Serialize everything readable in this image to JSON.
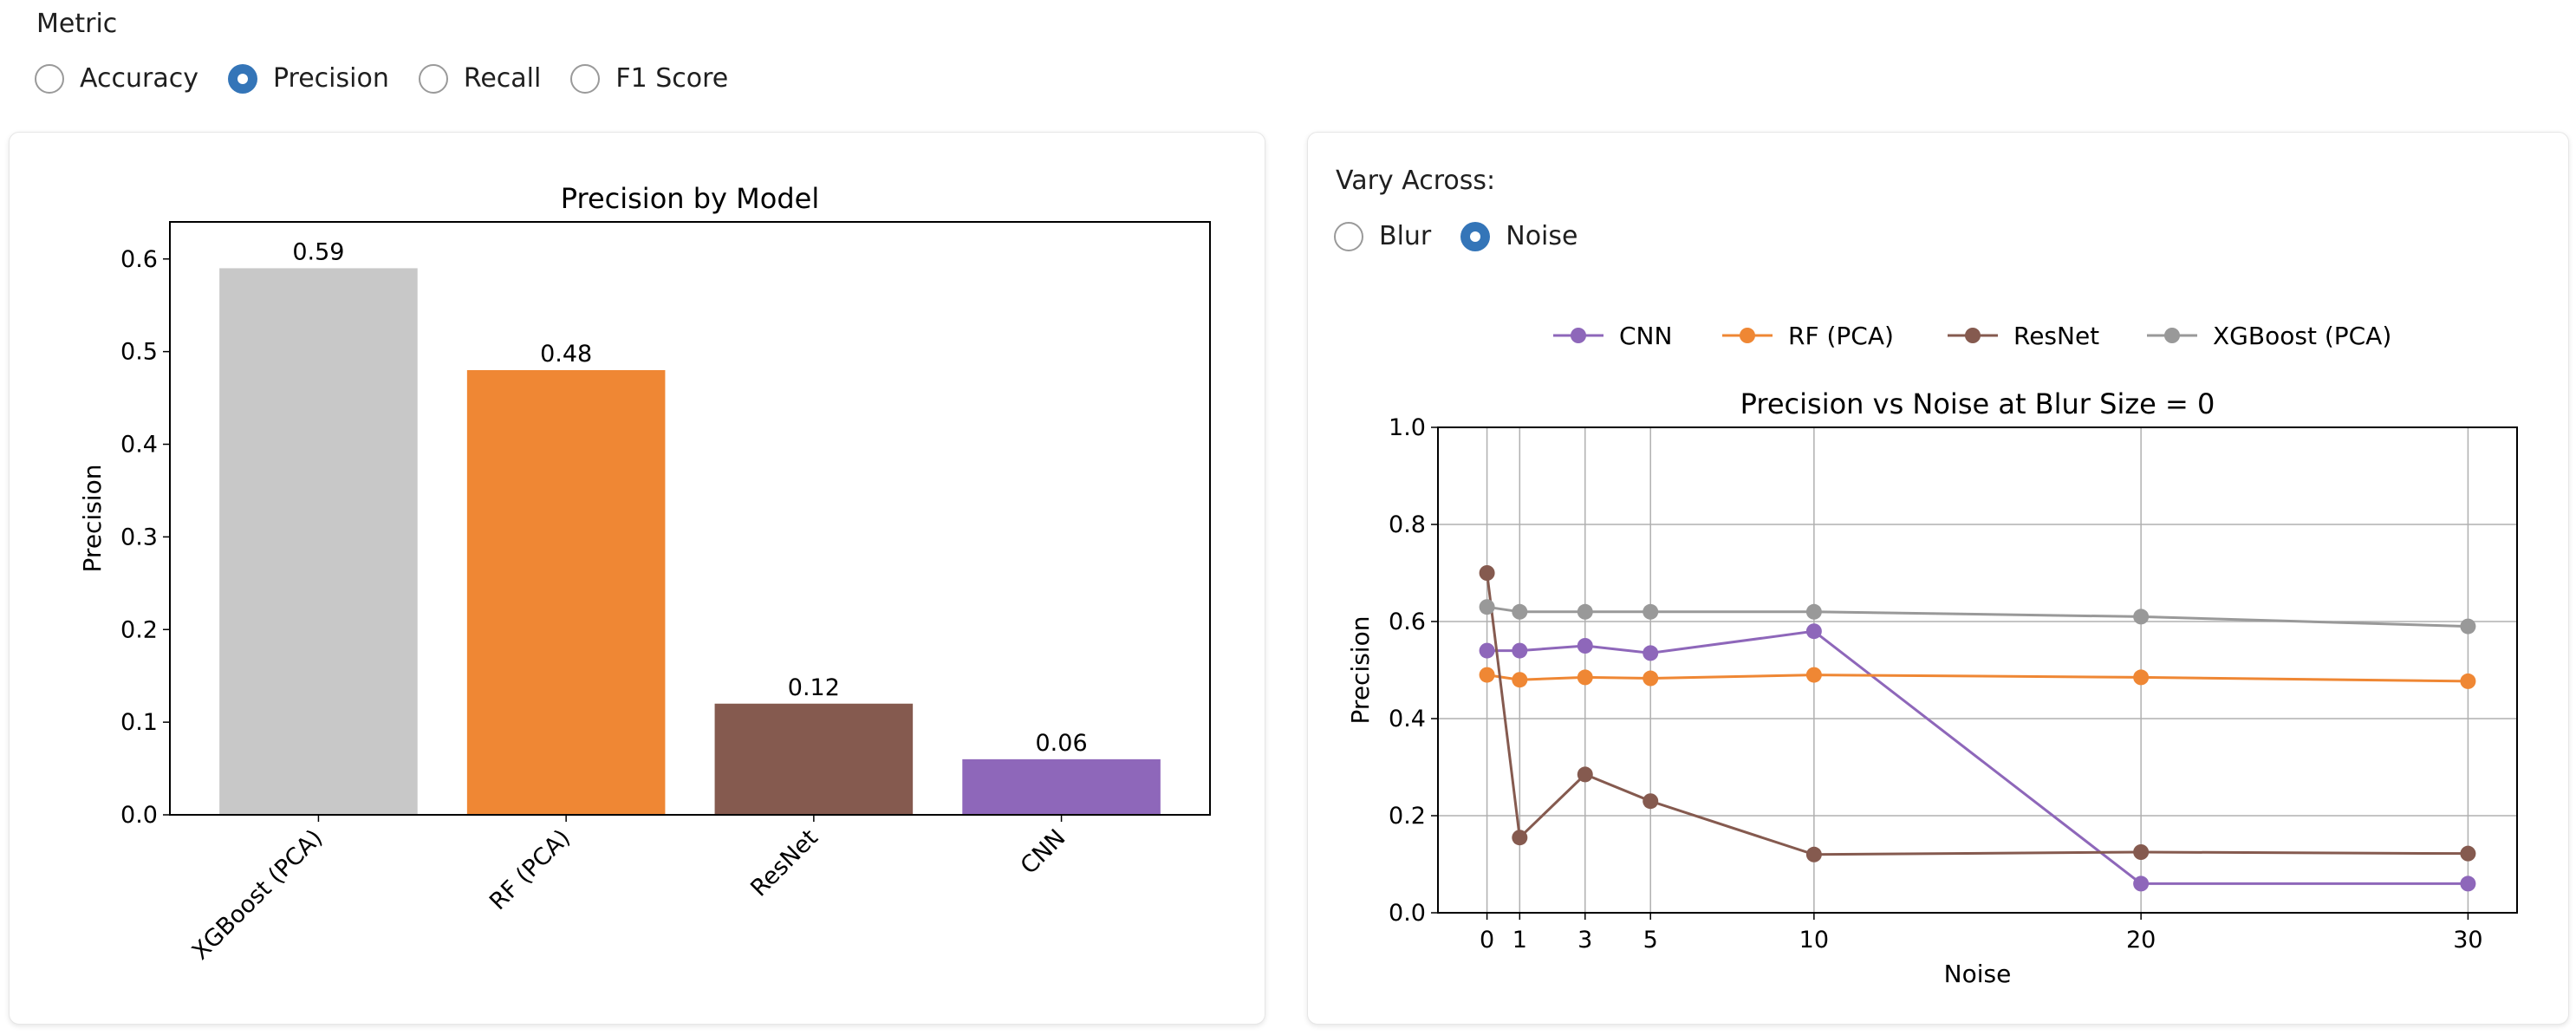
{
  "controls": {
    "metric_label": "Metric",
    "metric_options": [
      "Accuracy",
      "Precision",
      "Recall",
      "F1 Score"
    ],
    "metric_selected": "Precision",
    "vary_label": "Vary Across:",
    "vary_options": [
      "Blur",
      "Noise"
    ],
    "vary_selected": "Noise"
  },
  "colors": {
    "CNN": "#8e67ba",
    "RF (PCA)": "#ef8734",
    "ResNet": "#855a4f",
    "XGBoost (PCA)": "#c8c8c8",
    "XGBoost (PCA) line": "#999999",
    "radio_accent": "#3475b8"
  },
  "chart_data": [
    {
      "type": "bar",
      "title": "Precision by Model",
      "xlabel": "",
      "ylabel": "Precision",
      "categories": [
        "XGBoost (PCA)",
        "RF (PCA)",
        "ResNet",
        "CNN"
      ],
      "values": [
        0.59,
        0.48,
        0.12,
        0.06
      ],
      "value_labels": [
        "0.59",
        "0.48",
        "0.12",
        "0.06"
      ],
      "ylim": [
        0,
        0.64
      ],
      "yticks": [
        "0.0",
        "0.1",
        "0.2",
        "0.3",
        "0.4",
        "0.5",
        "0.6"
      ],
      "grid": false
    },
    {
      "type": "line",
      "title": "Precision vs Noise at Blur Size = 0",
      "xlabel": "Noise",
      "ylabel": "Precision",
      "x": [
        0,
        1,
        3,
        5,
        10,
        20,
        30
      ],
      "xticks": [
        "0",
        "1",
        "3",
        "5",
        "10",
        "20",
        "30"
      ],
      "xlim": [
        -1.5,
        31.5
      ],
      "ylim": [
        0,
        1.0
      ],
      "yticks": [
        "0.0",
        "0.2",
        "0.4",
        "0.6",
        "0.8",
        "1.0"
      ],
      "grid": true,
      "legend": "top",
      "series": [
        {
          "name": "CNN",
          "values": [
            0.54,
            0.54,
            0.55,
            0.535,
            0.58,
            0.06,
            0.06
          ]
        },
        {
          "name": "RF (PCA)",
          "values": [
            0.49,
            0.48,
            0.485,
            0.483,
            0.49,
            0.485,
            0.477
          ]
        },
        {
          "name": "ResNet",
          "values": [
            0.7,
            0.155,
            0.285,
            0.23,
            0.12,
            0.125,
            0.122
          ]
        },
        {
          "name": "XGBoost (PCA)",
          "values": [
            0.63,
            0.62,
            0.62,
            0.62,
            0.62,
            0.61,
            0.59
          ]
        }
      ]
    }
  ]
}
